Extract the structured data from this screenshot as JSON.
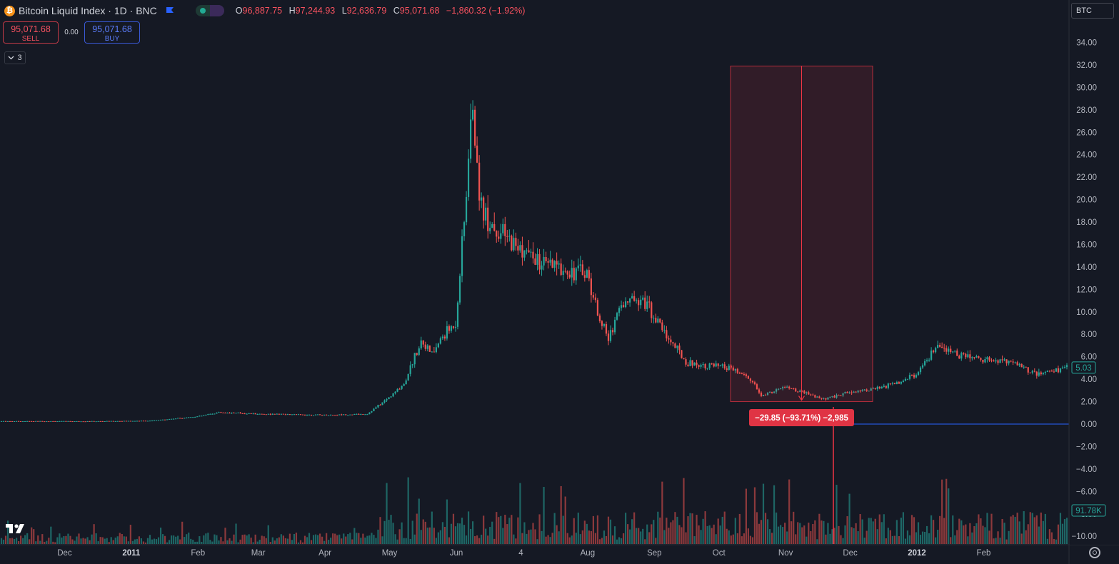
{
  "header": {
    "logo_glyph": "₿",
    "symbol": "Bitcoin Liquid Index · 1D · BNC",
    "ohlc": {
      "o_label": "O",
      "o": "96,887.75",
      "h_label": "H",
      "h": "97,244.93",
      "l_label": "L",
      "l": "92,636.79",
      "c_label": "C",
      "c": "95,071.68",
      "change": "−1,860.32 (−1.92%)"
    }
  },
  "trade": {
    "sell_price": "95,071.68",
    "sell_label": "SELL",
    "spread": "0.00",
    "buy_price": "95,071.68",
    "buy_label": "BUY"
  },
  "indicator_collapse": {
    "label": "3"
  },
  "currency_selector": {
    "value": "BTC"
  },
  "price_axis": {
    "ticks": [
      "34.00",
      "32.00",
      "30.00",
      "28.00",
      "26.00",
      "24.00",
      "22.00",
      "20.00",
      "18.00",
      "16.00",
      "14.00",
      "12.00",
      "10.00",
      "8.00",
      "6.00",
      "4.00",
      "2.00",
      "0.00",
      "−2.00",
      "−4.00",
      "−6.00",
      "−8.00",
      "−10.00"
    ],
    "last_price_label": "5.03",
    "volume_label": "91.78K"
  },
  "time_axis": {
    "ticks": [
      "Dec",
      "2011",
      "Feb",
      "Mar",
      "Apr",
      "May",
      "Jun",
      "4",
      "Aug",
      "Sep",
      "Oct",
      "Nov",
      "Dec",
      "2012",
      "Feb"
    ]
  },
  "measure": {
    "label": "−29.85 (−93.71%) −2,985",
    "top_price": 31.9,
    "bottom_price": 2.0
  },
  "chart_data": {
    "type": "candlestick",
    "title": "Bitcoin Liquid Index · 1D · BNC",
    "ylim": [
      -11,
      35
    ],
    "colors": {
      "up": "#26a69a",
      "down": "#ef5350",
      "background": "#151924",
      "grid": "none"
    },
    "date_range": [
      "2010-11-01",
      "2012-03-10"
    ],
    "close_anchors": [
      [
        "2010-11-01",
        0.26
      ],
      [
        "2010-12-15",
        0.25
      ],
      [
        "2011-01-10",
        0.3
      ],
      [
        "2011-02-01",
        0.7
      ],
      [
        "2011-02-10",
        1.05
      ],
      [
        "2011-03-01",
        0.9
      ],
      [
        "2011-04-01",
        0.8
      ],
      [
        "2011-04-20",
        0.9
      ],
      [
        "2011-05-01",
        2.5
      ],
      [
        "2011-05-07",
        3.6
      ],
      [
        "2011-05-15",
        7.5
      ],
      [
        "2011-05-20",
        6.2
      ],
      [
        "2011-05-25",
        7.8
      ],
      [
        "2011-05-31",
        9.0
      ],
      [
        "2011-06-04",
        18.0
      ],
      [
        "2011-06-08",
        29.0
      ],
      [
        "2011-06-10",
        22.0
      ],
      [
        "2011-06-13",
        19.0
      ],
      [
        "2011-06-20",
        17.0
      ],
      [
        "2011-07-01",
        15.5
      ],
      [
        "2011-07-10",
        14.2
      ],
      [
        "2011-07-20",
        13.8
      ],
      [
        "2011-07-31",
        13.5
      ],
      [
        "2011-08-05",
        10.0
      ],
      [
        "2011-08-10",
        7.5
      ],
      [
        "2011-08-15",
        10.5
      ],
      [
        "2011-08-25",
        11.5
      ],
      [
        "2011-09-05",
        8.2
      ],
      [
        "2011-09-15",
        5.5
      ],
      [
        "2011-09-25",
        5.2
      ],
      [
        "2011-10-05",
        5.0
      ],
      [
        "2011-10-15",
        4.0
      ],
      [
        "2011-10-20",
        2.5
      ],
      [
        "2011-10-31",
        3.3
      ],
      [
        "2011-11-18",
        2.2
      ],
      [
        "2011-12-01",
        2.9
      ],
      [
        "2011-12-15",
        3.2
      ],
      [
        "2012-01-01",
        4.5
      ],
      [
        "2012-01-09",
        6.8
      ],
      [
        "2012-01-20",
        6.2
      ],
      [
        "2012-02-01",
        5.8
      ],
      [
        "2012-02-15",
        5.5
      ],
      [
        "2012-02-25",
        4.4
      ],
      [
        "2012-03-10",
        5.03
      ]
    ]
  }
}
